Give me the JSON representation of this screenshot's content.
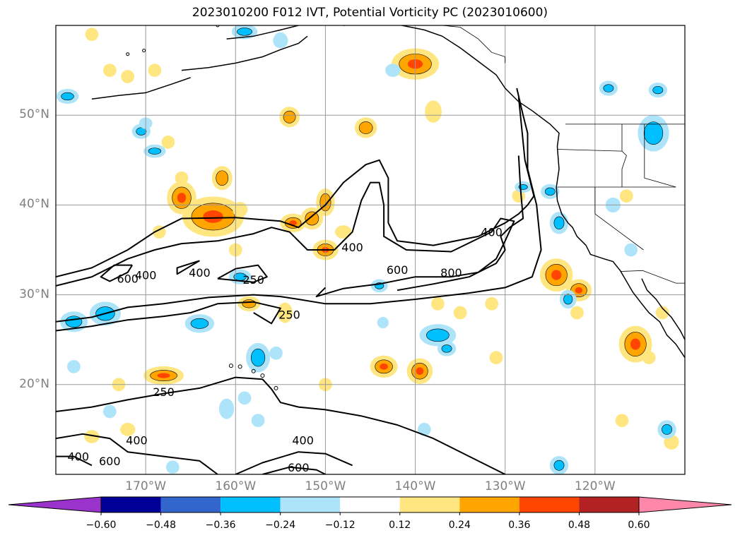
{
  "title": "2023010200 F012 IVT, Potential Vorticity PC (2023010600)",
  "lat_labels": [
    {
      "text": "50°N",
      "lat": 50
    },
    {
      "text": "40°N",
      "lat": 40
    },
    {
      "text": "30°N",
      "lat": 30
    },
    {
      "text": "20°N",
      "lat": 20
    }
  ],
  "lon_labels": [
    {
      "text": "170°W",
      "lon": -170
    },
    {
      "text": "160°W",
      "lon": -160
    },
    {
      "text": "150°W",
      "lon": -150
    },
    {
      "text": "140°W",
      "lon": -140
    },
    {
      "text": "130°W",
      "lon": -130
    },
    {
      "text": "120°W",
      "lon": -120
    }
  ],
  "colorbar": {
    "ticks": [
      "−0.60",
      "−0.48",
      "−0.36",
      "−0.24",
      "−0.12",
      "0.12",
      "0.24",
      "0.36",
      "0.48",
      "0.60"
    ],
    "colors": [
      "#9933cc",
      "#000099",
      "#3366cc",
      "#00bfff",
      "#aee4fa",
      "#ffffff",
      "#ffe680",
      "#ffa500",
      "#ff4500",
      "#b22222",
      "#ff88aa"
    ],
    "extend": "both"
  },
  "ivt_contour_labels": [
    {
      "text": "400",
      "lon": -164,
      "lat": 32.5
    },
    {
      "text": "250",
      "lon": -158,
      "lat": 31.7
    },
    {
      "text": "600",
      "lon": -172,
      "lat": 31.8
    },
    {
      "text": "400",
      "lon": -170,
      "lat": 32.2
    },
    {
      "text": "400",
      "lon": -147,
      "lat": 35.3
    },
    {
      "text": "600",
      "lon": -142,
      "lat": 32.8
    },
    {
      "text": "800",
      "lon": -136,
      "lat": 32.5
    },
    {
      "text": "400",
      "lon": -131.5,
      "lat": 37
    },
    {
      "text": "250",
      "lon": -154,
      "lat": 27.8
    },
    {
      "text": "250",
      "lon": -168,
      "lat": 19.2
    },
    {
      "text": "400",
      "lon": -171,
      "lat": 13.8
    },
    {
      "text": "600",
      "lon": -174,
      "lat": 11.5
    },
    {
      "text": "400",
      "lon": -152.5,
      "lat": 13.8
    },
    {
      "text": "600",
      "lon": -153,
      "lat": 10.8
    },
    {
      "text": "400",
      "lon": -177.5,
      "lat": 12.0
    }
  ],
  "map": {
    "lon_range": [
      -180,
      -110
    ],
    "lat_range": [
      10,
      60
    ],
    "projection": "PlateCarree",
    "gridlines": true,
    "ivt_levels": [
      250,
      400,
      600,
      800
    ],
    "pv_colors": {
      "pos_weak": "#ffe680",
      "pos_mid": "#ffa500",
      "pos_strong": "#ff4500",
      "neg_weak": "#aee4fa",
      "neg_mid": "#00bfff"
    }
  }
}
